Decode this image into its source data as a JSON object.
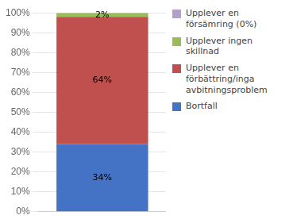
{
  "chart_data": {
    "type": "bar",
    "stacked": true,
    "categories": [
      null
    ],
    "series": [
      {
        "name": "Bortfall",
        "color": "#4472C4",
        "values": [
          34
        ],
        "value_labels": [
          "34%"
        ]
      },
      {
        "name": "Upplever en\nförbättring/inga\navbitningsproblem",
        "color": "#C0504D",
        "values": [
          64
        ],
        "value_labels": [
          "64%"
        ]
      },
      {
        "name": "Upplever ingen\nskillnad",
        "color": "#9BBB59",
        "values": [
          2
        ],
        "value_labels": [
          "2%"
        ]
      },
      {
        "name": "Upplever en\nförsämring (0%)",
        "color": "#B1A0C7",
        "values": [
          0
        ],
        "value_labels": [
          null
        ]
      }
    ],
    "ylim": [
      0,
      100
    ],
    "yticks": [
      {
        "value": 0,
        "label": "0%"
      },
      {
        "value": 10,
        "label": "10%"
      },
      {
        "value": 20,
        "label": "20%"
      },
      {
        "value": 30,
        "label": "30%"
      },
      {
        "value": 40,
        "label": "40%"
      },
      {
        "value": 50,
        "label": "50%"
      },
      {
        "value": 60,
        "label": "60%"
      },
      {
        "value": 70,
        "label": "70%"
      },
      {
        "value": 80,
        "label": "80%"
      },
      {
        "value": 90,
        "label": "90%"
      },
      {
        "value": 100,
        "label": "100%"
      }
    ],
    "grid": true,
    "legend": "right",
    "data_labels": true,
    "tick_labels": "y"
  }
}
